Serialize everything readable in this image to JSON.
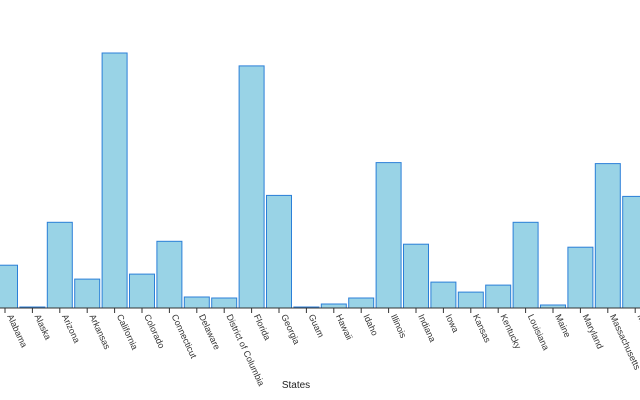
{
  "chart_data": {
    "type": "bar",
    "xlabel": "States",
    "ylabel": "",
    "grid": false,
    "categories": [
      "Alabama",
      "Alaska",
      "Arizona",
      "Arkansas",
      "California",
      "Colorado",
      "Connecticut",
      "Delaware",
      "District of Columbia",
      "Florida",
      "Georgia",
      "Guam",
      "Hawaii",
      "Idaho",
      "Illinois",
      "Indiana",
      "Iowa",
      "Kansas",
      "Kentucky",
      "Louisiana",
      "Maine",
      "Maryland",
      "Massachusetts",
      "Michigan"
    ],
    "values": [
      43,
      1,
      86,
      29,
      256,
      34,
      67,
      11,
      10,
      243,
      113,
      1,
      4,
      10,
      146,
      64,
      26,
      16,
      23,
      86,
      3,
      61,
      145,
      112
    ],
    "ylim": [
      0,
      300
    ],
    "colors": {
      "bar_fill": "#99d3e6",
      "bar_stroke": "#2b7fd8"
    }
  }
}
